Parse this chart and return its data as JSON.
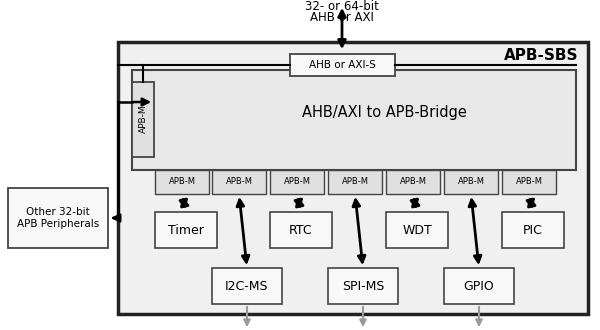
{
  "title": "APB-SBS",
  "top_label_line1": "32- or 64-bit",
  "top_label_line2": "AHB or AXI",
  "ahb_axi_s_label": "AHB or AXI-S",
  "bridge_label": "AHB/AXI to APB-Bridge",
  "apb_m_label": "APB-M",
  "other_label": "Other 32-bit\nAPB Peripherals",
  "per1_labels": [
    "Timer",
    "RTC",
    "WDT",
    "PIC"
  ],
  "per2_labels": [
    "I2C-MS",
    "SPI-MS",
    "GPIO"
  ],
  "outer_fc": "#f0f0f0",
  "inner_fc": "#e8e8e8",
  "box_fc": "#f8f8f8",
  "apbm_fc": "#e0e0e0",
  "text_color": "#000000"
}
